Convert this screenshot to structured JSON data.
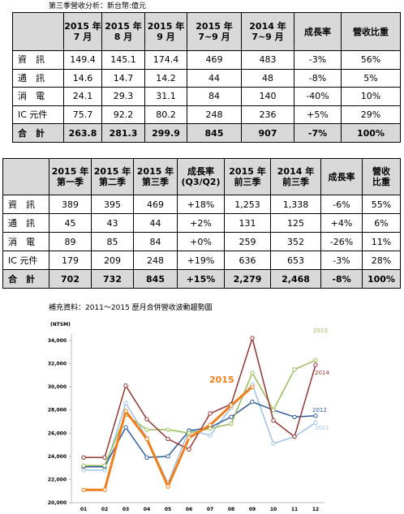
{
  "caption1": "第三季營收分析：新台幣:億元",
  "table1": {
    "header": [
      [
        "2015 年",
        "7 月"
      ],
      [
        "2015 年",
        "8 月"
      ],
      [
        "2015 年",
        "9 月"
      ],
      [
        "2015 年",
        "7~9 月"
      ],
      [
        "2014 年",
        "7~9 月"
      ],
      [
        "成長率"
      ],
      [
        "營收比重"
      ]
    ],
    "rows": [
      [
        "資　訊",
        "149.4",
        "145.1",
        "174.4",
        "469",
        "483",
        "-3%",
        "56%"
      ],
      [
        "通　訊",
        "14.6",
        "14.7",
        "14.2",
        "44",
        "48",
        "-8%",
        "5%"
      ],
      [
        "消　電",
        "24.1",
        "29.3",
        "31.1",
        "84",
        "140",
        "-40%",
        "10%"
      ],
      [
        "IC 元件",
        "75.7",
        "92.2",
        "80.2",
        "248",
        "236",
        "+5%",
        "29%"
      ],
      [
        "合　計",
        "263.8",
        "281.3",
        "299.9",
        "845",
        "907",
        "-7%",
        "100%"
      ]
    ]
  },
  "table2": {
    "header": [
      [
        "2015 年",
        "第一季"
      ],
      [
        "2015 年",
        "第二季"
      ],
      [
        "2015 年",
        "第三季"
      ],
      [
        "成長率",
        "(Q3/Q2)"
      ],
      [
        "2015 年",
        "前三季"
      ],
      [
        "2014 年",
        "前三季"
      ],
      [
        "成長率"
      ],
      [
        "營收",
        "比重"
      ]
    ],
    "rows": [
      [
        "資　訊",
        "389",
        "395",
        "469",
        "+18%",
        "1,253",
        "1,338",
        "-6%",
        "55%"
      ],
      [
        "通　訊",
        "45",
        "43",
        "44",
        "+2%",
        "131",
        "125",
        "+4%",
        "6%"
      ],
      [
        "消　電",
        "89",
        "85",
        "84",
        "+0%",
        "259",
        "352",
        "-26%",
        "11%"
      ],
      [
        "IC 元件",
        "179",
        "209",
        "248",
        "+19%",
        "636",
        "653",
        "-3%",
        "28%"
      ],
      [
        "合　計",
        "702",
        "732",
        "845",
        "+15%",
        "2,279",
        "2,468",
        "-8%",
        "100%"
      ]
    ]
  },
  "chart_data": {
    "type": "line",
    "title": "補充資料：2011～2015 歷月合併營收波動趨勢圖",
    "y_label": "(NTSM)",
    "categories": [
      "01",
      "02",
      "03",
      "04",
      "05",
      "06",
      "07",
      "08",
      "09",
      "10",
      "11",
      "12"
    ],
    "ylim": [
      20000,
      34000
    ],
    "yticks": [
      {
        "value": 20000,
        "label": "20,000"
      },
      {
        "value": 22000,
        "label": "22,000"
      },
      {
        "value": 24000,
        "label": "24,000"
      },
      {
        "value": 26000,
        "label": "26,000"
      },
      {
        "value": 28000,
        "label": "28,000"
      },
      {
        "value": 30000,
        "label": "30,000"
      },
      {
        "value": 32000,
        "label": "32,000"
      },
      {
        "value": 34000,
        "label": "34,000"
      }
    ],
    "series": [
      {
        "name": "2011",
        "color": "#9dc3e6",
        "values": [
          22800,
          22800,
          28600,
          25600,
          21700,
          26300,
          25800,
          28200,
          30200,
          25100,
          25700,
          26900
        ]
      },
      {
        "name": "2012",
        "color": "#2e5b9a",
        "values": [
          23100,
          23100,
          26500,
          23900,
          24000,
          26200,
          26500,
          27400,
          28700,
          28000,
          27400,
          27500
        ]
      },
      {
        "name": "2013",
        "color": "#9bbb59",
        "values": [
          23200,
          23200,
          27600,
          26300,
          26300,
          26000,
          26400,
          26800,
          31200,
          28000,
          31500,
          32300
        ]
      },
      {
        "name": "2014",
        "color": "#943634",
        "values": [
          23900,
          23900,
          30100,
          27200,
          25500,
          24600,
          27700,
          28500,
          34200,
          27100,
          25700,
          31900
        ]
      },
      {
        "name": "2015",
        "color": "#f07f1c",
        "values": [
          21100,
          21100,
          27900,
          25500,
          21400,
          25600,
          26700,
          28400,
          30000,
          null,
          null,
          null
        ]
      }
    ]
  }
}
